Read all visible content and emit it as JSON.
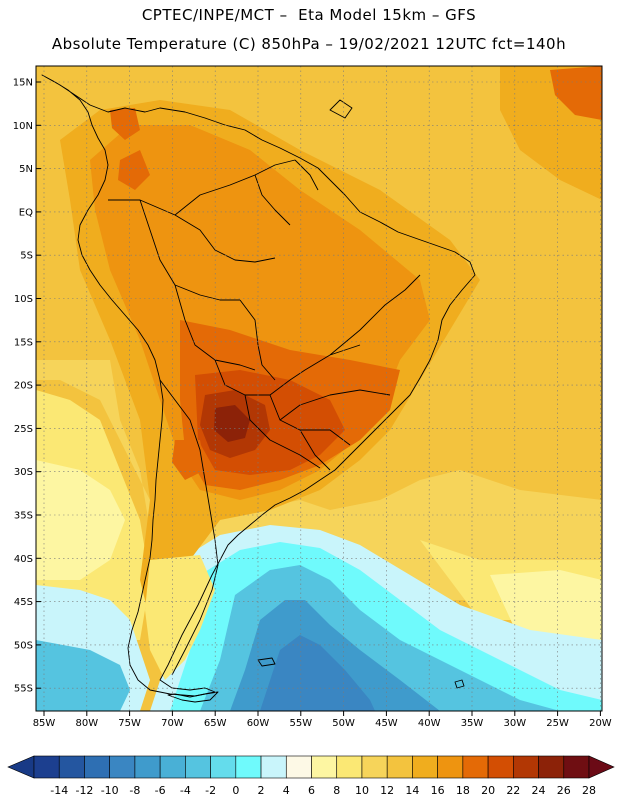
{
  "title": {
    "line1": "CPTEC/INPE/MCT –  Eta Model 15km – GFS",
    "line2": "Absolute Temperature (C) 850hPa – 19/02/2021 12UTC fct=140h"
  },
  "axes": {
    "lat_labels": [
      "15N",
      "10N",
      "5N",
      "EQ",
      "5S",
      "10S",
      "15S",
      "20S",
      "25S",
      "30S",
      "35S",
      "40S",
      "45S",
      "50S",
      "55S"
    ],
    "lon_labels": [
      "85W",
      "80W",
      "75W",
      "70W",
      "65W",
      "60W",
      "55W",
      "50W",
      "45W",
      "40W",
      "35W",
      "30W",
      "25W",
      "20W"
    ]
  },
  "colorbar": {
    "labels": [
      "-14",
      "-12",
      "-10",
      "-8",
      "-6",
      "-4",
      "-2",
      "0",
      "2",
      "4",
      "6",
      "8",
      "10",
      "12",
      "14",
      "16",
      "18",
      "20",
      "22",
      "24",
      "26",
      "28"
    ],
    "colors": [
      "#1c3f8f",
      "#2456a0",
      "#2e6fb3",
      "#3a86c2",
      "#3f9bcc",
      "#49b0d6",
      "#55c4e0",
      "#64dcec",
      "#6ffafc",
      "#c9f5fb",
      "#fdf9e6",
      "#fdf6a2",
      "#fbe874",
      "#f6d45a",
      "#f3c33e",
      "#f0ad1e",
      "#ee9410",
      "#e46a06",
      "#d34e03",
      "#b23704",
      "#8c2208",
      "#6f0e12"
    ],
    "low_arrow_color": "#183a86",
    "high_arrow_color": "#6b0a16"
  },
  "map_colors": {
    "ocean_warm": "#f3c33e",
    "ocean_mid": "#f6d45a",
    "ocean_light": "#fbe874",
    "ocean_pale": "#fdf6a2",
    "ocean_cream": "#fdf9e6",
    "cold_pale": "#c9f5fb",
    "cold_cyan": "#6ffafc",
    "cold_mid": "#55c4e0",
    "cold_deep": "#3f9bcc",
    "cold_deeper": "#3a86c2",
    "land_base": "#f0ad1e",
    "land_warm": "#ee9410",
    "land_hot": "#e46a06",
    "land_hotter": "#d34e03",
    "land_peak": "#b23704",
    "land_max": "#8c2208",
    "border": "#000000",
    "grid": "#7a7a7a"
  }
}
